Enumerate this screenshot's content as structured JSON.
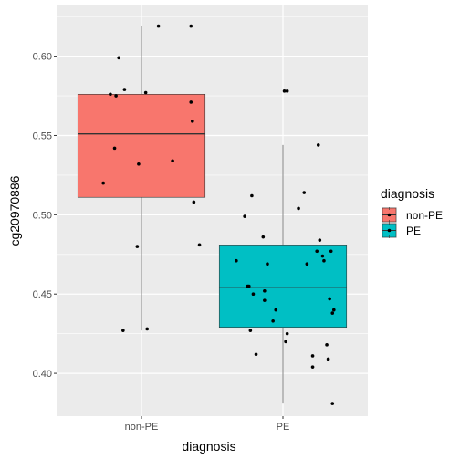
{
  "chart_data": {
    "type": "boxplot",
    "xlabel": "diagnosis",
    "ylabel": "cg20970886",
    "categories": [
      "non-PE",
      "PE"
    ],
    "ylim": [
      0.373,
      0.632
    ],
    "yticks": [
      0.4,
      0.45,
      0.5,
      0.55,
      0.6
    ],
    "ytick_labels": [
      "0.40",
      "0.45",
      "0.50",
      "0.55",
      "0.60"
    ],
    "grid": true,
    "legend": {
      "title": "diagnosis",
      "position": "right",
      "entries": [
        "non-PE",
        "PE"
      ]
    },
    "colors": {
      "non-PE": "#F8766D",
      "PE": "#00BFC4",
      "panel": "#EBEBEB",
      "grid": "#FFFFFF"
    },
    "boxes": [
      {
        "name": "non-PE",
        "whisker_low": 0.427,
        "q1": 0.511,
        "median": 0.551,
        "q3": 0.576,
        "whisker_high": 0.619
      },
      {
        "name": "PE",
        "whisker_low": 0.381,
        "q1": 0.429,
        "median": 0.454,
        "q3": 0.481,
        "whisker_high": 0.544
      }
    ],
    "points": [
      {
        "group": "non-PE",
        "x": 0.73,
        "y": 0.52
      },
      {
        "group": "non-PE",
        "x": 0.78,
        "y": 0.576
      },
      {
        "group": "non-PE",
        "x": 0.81,
        "y": 0.542
      },
      {
        "group": "non-PE",
        "x": 0.82,
        "y": 0.575
      },
      {
        "group": "non-PE",
        "x": 0.84,
        "y": 0.599
      },
      {
        "group": "non-PE",
        "x": 0.88,
        "y": 0.579
      },
      {
        "group": "non-PE",
        "x": 0.87,
        "y": 0.427
      },
      {
        "group": "non-PE",
        "x": 0.97,
        "y": 0.48
      },
      {
        "group": "non-PE",
        "x": 0.98,
        "y": 0.532
      },
      {
        "group": "non-PE",
        "x": 1.03,
        "y": 0.577
      },
      {
        "group": "non-PE",
        "x": 1.04,
        "y": 0.428
      },
      {
        "group": "non-PE",
        "x": 1.12,
        "y": 0.619
      },
      {
        "group": "non-PE",
        "x": 1.22,
        "y": 0.534
      },
      {
        "group": "non-PE",
        "x": 1.35,
        "y": 0.571
      },
      {
        "group": "non-PE",
        "x": 1.36,
        "y": 0.559
      },
      {
        "group": "non-PE",
        "x": 1.35,
        "y": 0.619
      },
      {
        "group": "non-PE",
        "x": 1.37,
        "y": 0.508
      },
      {
        "group": "non-PE",
        "x": 1.41,
        "y": 0.481
      },
      {
        "group": "PE",
        "x": 1.67,
        "y": 0.471
      },
      {
        "group": "PE",
        "x": 1.73,
        "y": 0.499
      },
      {
        "group": "PE",
        "x": 1.75,
        "y": 0.455
      },
      {
        "group": "PE",
        "x": 1.76,
        "y": 0.455
      },
      {
        "group": "PE",
        "x": 1.77,
        "y": 0.427
      },
      {
        "group": "PE",
        "x": 1.78,
        "y": 0.512
      },
      {
        "group": "PE",
        "x": 1.79,
        "y": 0.45
      },
      {
        "group": "PE",
        "x": 1.81,
        "y": 0.412
      },
      {
        "group": "PE",
        "x": 1.86,
        "y": 0.486
      },
      {
        "group": "PE",
        "x": 1.87,
        "y": 0.446
      },
      {
        "group": "PE",
        "x": 1.87,
        "y": 0.452
      },
      {
        "group": "PE",
        "x": 1.89,
        "y": 0.469
      },
      {
        "group": "PE",
        "x": 1.93,
        "y": 0.433
      },
      {
        "group": "PE",
        "x": 1.95,
        "y": 0.44
      },
      {
        "group": "PE",
        "x": 2.01,
        "y": 0.578
      },
      {
        "group": "PE",
        "x": 2.03,
        "y": 0.578
      },
      {
        "group": "PE",
        "x": 2.02,
        "y": 0.42
      },
      {
        "group": "PE",
        "x": 2.03,
        "y": 0.425
      },
      {
        "group": "PE",
        "x": 2.11,
        "y": 0.504
      },
      {
        "group": "PE",
        "x": 2.15,
        "y": 0.514
      },
      {
        "group": "PE",
        "x": 2.17,
        "y": 0.469
      },
      {
        "group": "PE",
        "x": 2.21,
        "y": 0.411
      },
      {
        "group": "PE",
        "x": 2.21,
        "y": 0.404
      },
      {
        "group": "PE",
        "x": 2.24,
        "y": 0.477
      },
      {
        "group": "PE",
        "x": 2.25,
        "y": 0.544
      },
      {
        "group": "PE",
        "x": 2.26,
        "y": 0.484
      },
      {
        "group": "PE",
        "x": 2.28,
        "y": 0.474
      },
      {
        "group": "PE",
        "x": 2.29,
        "y": 0.471
      },
      {
        "group": "PE",
        "x": 2.31,
        "y": 0.418
      },
      {
        "group": "PE",
        "x": 2.32,
        "y": 0.409
      },
      {
        "group": "PE",
        "x": 2.33,
        "y": 0.447
      },
      {
        "group": "PE",
        "x": 2.34,
        "y": 0.477
      },
      {
        "group": "PE",
        "x": 2.35,
        "y": 0.438
      },
      {
        "group": "PE",
        "x": 2.36,
        "y": 0.44
      },
      {
        "group": "PE",
        "x": 2.35,
        "y": 0.381
      }
    ]
  }
}
